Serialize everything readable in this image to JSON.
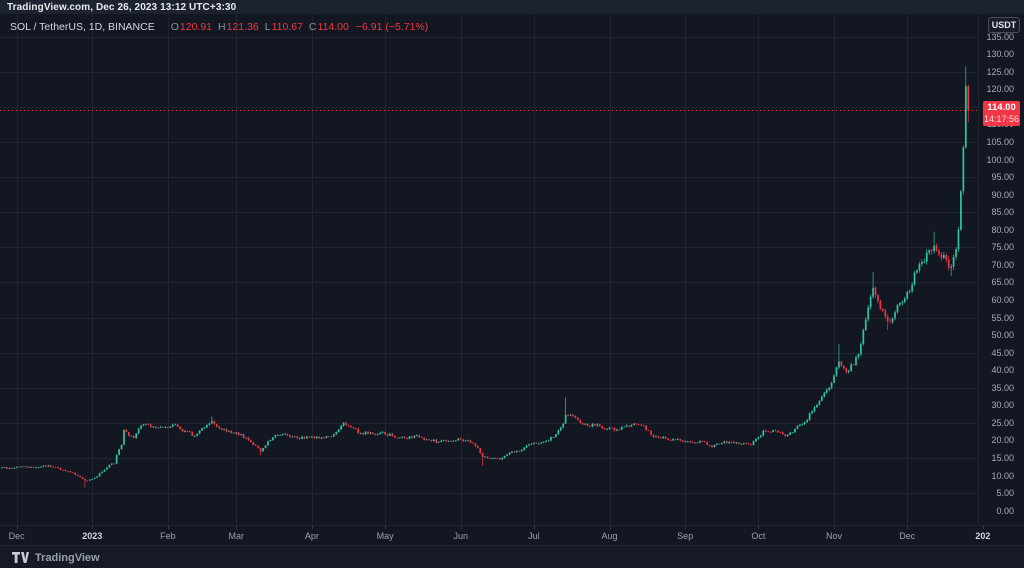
{
  "header": {
    "title": "TradingView.com, Dec 26, 2023 13:12 UTC+3:30"
  },
  "legend": {
    "symbol": "SOL / TetherUS, 1D, BINANCE",
    "o_label": "O",
    "o": "120.91",
    "h_label": "H",
    "h": "121.36",
    "l_label": "L",
    "l": "110.67",
    "c_label": "C",
    "c": "114.00",
    "change": "−6.91 (−5.71%)"
  },
  "price_axis": {
    "currency_button": "USDT",
    "ticks": [
      "135.00",
      "130.00",
      "125.00",
      "120.00",
      "115.00",
      "110.00",
      "105.00",
      "100.00",
      "95.00",
      "90.00",
      "85.00",
      "80.00",
      "75.00",
      "70.00",
      "65.00",
      "60.00",
      "55.00",
      "50.00",
      "45.00",
      "40.00",
      "35.00",
      "30.00",
      "25.00",
      "20.00",
      "15.00",
      "10.00",
      "5.00",
      "0.00"
    ],
    "tick_max": 135,
    "tick_step": 5,
    "last_price": "114.00",
    "countdown": "14:17:56"
  },
  "time_axis": {
    "labels": [
      {
        "text": "Dec",
        "day": 6,
        "major": false
      },
      {
        "text": "2023",
        "day": 37,
        "major": true
      },
      {
        "text": "Feb",
        "day": 68,
        "major": false
      },
      {
        "text": "Mar",
        "day": 96,
        "major": false
      },
      {
        "text": "Apr",
        "day": 127,
        "major": false
      },
      {
        "text": "May",
        "day": 157,
        "major": false
      },
      {
        "text": "Jun",
        "day": 188,
        "major": false
      },
      {
        "text": "Jul",
        "day": 218,
        "major": false
      },
      {
        "text": "Aug",
        "day": 249,
        "major": false
      },
      {
        "text": "Sep",
        "day": 280,
        "major": false
      },
      {
        "text": "Oct",
        "day": 310,
        "major": false
      },
      {
        "text": "Nov",
        "day": 341,
        "major": false
      },
      {
        "text": "Dec",
        "day": 371,
        "major": false
      },
      {
        "text": "202",
        "day": 402,
        "major": true
      }
    ]
  },
  "footer": {
    "brand": "TradingView"
  },
  "colors": {
    "background": "#131722",
    "up": "#2fc6a7",
    "down": "#f23645",
    "grid": "rgba(54,58,69,0.38)",
    "last_price_line": "#f23645"
  },
  "chart_data": {
    "type": "candlestick",
    "symbol": "SOL/USDT",
    "exchange": "BINANCE",
    "interval": "1D",
    "current_price": 114.0,
    "last_open": 120.91,
    "last_high": 121.36,
    "last_low": 110.67,
    "change": -6.91,
    "change_pct": -5.71,
    "ylim": [
      0,
      141.5
    ],
    "days_total": 396,
    "anchors_format": "[day_index_from_2022-11-25, close, high_or_null, low_or_null]",
    "anchors": [
      [
        0,
        12.3
      ],
      [
        4,
        12.0
      ],
      [
        8,
        12.6
      ],
      [
        13,
        12.2
      ],
      [
        19,
        12.9
      ],
      [
        21,
        12.4
      ],
      [
        25,
        11.6
      ],
      [
        29,
        10.8
      ],
      [
        32,
        9.6
      ],
      [
        34,
        8.6,
        null,
        6.6
      ],
      [
        36,
        8.9
      ],
      [
        38,
        9.4
      ],
      [
        41,
        11.1
      ],
      [
        44,
        13.1
      ],
      [
        46,
        13.4
      ],
      [
        47,
        15.9
      ],
      [
        49,
        18.8
      ],
      [
        50,
        23.0
      ],
      [
        52,
        21.3
      ],
      [
        54,
        20.7
      ],
      [
        57,
        24.2
      ],
      [
        60,
        24.5
      ],
      [
        63,
        23.6
      ],
      [
        67,
        23.8
      ],
      [
        70,
        24.5
      ],
      [
        75,
        22.7
      ],
      [
        79,
        21.3
      ],
      [
        82,
        23.5
      ],
      [
        86,
        25.5,
        26.8
      ],
      [
        89,
        23.5
      ],
      [
        92,
        22.5
      ],
      [
        96,
        22.3
      ],
      [
        100,
        20.8
      ],
      [
        104,
        18.5
      ],
      [
        106,
        16.9,
        null,
        15.8
      ],
      [
        109,
        19.8
      ],
      [
        112,
        21.5
      ],
      [
        116,
        21.9
      ],
      [
        121,
        20.7
      ],
      [
        126,
        20.9
      ],
      [
        130,
        20.6
      ],
      [
        135,
        21.1
      ],
      [
        139,
        24.2
      ],
      [
        140,
        25.1
      ],
      [
        143,
        23.8
      ],
      [
        147,
        22.1
      ],
      [
        152,
        21.9
      ],
      [
        156,
        22.4
      ],
      [
        160,
        21.3
      ],
      [
        165,
        20.7
      ],
      [
        169,
        21.3
      ],
      [
        174,
        20.3
      ],
      [
        179,
        19.6
      ],
      [
        183,
        19.9
      ],
      [
        187,
        20.6
      ],
      [
        192,
        19.4
      ],
      [
        195,
        17.8
      ],
      [
        197,
        15.3,
        null,
        12.8
      ],
      [
        201,
        15.0
      ],
      [
        204,
        14.6
      ],
      [
        208,
        16.5
      ],
      [
        212,
        16.9
      ],
      [
        216,
        18.9
      ],
      [
        219,
        19.1
      ],
      [
        223,
        19.9
      ],
      [
        227,
        21.8
      ],
      [
        230,
        24.8
      ],
      [
        231,
        27.3,
        32.3
      ],
      [
        234,
        26.9
      ],
      [
        237,
        25.0
      ],
      [
        240,
        24.2
      ],
      [
        244,
        24.6
      ],
      [
        248,
        23.3
      ],
      [
        252,
        23.1
      ],
      [
        256,
        24.3
      ],
      [
        260,
        24.6
      ],
      [
        263,
        24.2
      ],
      [
        266,
        21.6
      ],
      [
        270,
        20.7
      ],
      [
        275,
        20.4
      ],
      [
        279,
        19.7
      ],
      [
        283,
        19.4
      ],
      [
        287,
        19.8
      ],
      [
        291,
        18.1
      ],
      [
        295,
        19.3
      ],
      [
        299,
        19.6
      ],
      [
        303,
        19.0
      ],
      [
        307,
        18.7
      ],
      [
        310,
        20.9
      ],
      [
        312,
        22.8
      ],
      [
        316,
        22.9
      ],
      [
        321,
        21.2
      ],
      [
        325,
        23.3
      ],
      [
        329,
        25.3
      ],
      [
        333,
        29.5
      ],
      [
        336,
        32.5
      ],
      [
        339,
        35.0
      ],
      [
        341,
        38.5
      ],
      [
        343,
        42.5,
        47.5
      ],
      [
        346,
        39.5
      ],
      [
        349,
        41.5
      ],
      [
        352,
        47.5
      ],
      [
        354,
        54.5
      ],
      [
        357,
        63.5,
        68.0
      ],
      [
        360,
        57.5
      ],
      [
        363,
        54.0,
        null,
        51.5
      ],
      [
        366,
        56.5
      ],
      [
        369,
        59.5
      ],
      [
        372,
        62.5
      ],
      [
        375,
        68.5
      ],
      [
        379,
        73.5
      ],
      [
        382,
        75.5,
        79.5
      ],
      [
        384,
        73.0
      ],
      [
        387,
        71.5
      ],
      [
        389,
        69.5,
        null,
        66.9
      ],
      [
        391,
        74.5
      ],
      [
        392,
        80.0
      ],
      [
        393,
        91.0
      ],
      [
        394,
        103.5
      ],
      [
        395,
        120.9,
        126.5
      ],
      [
        396,
        114.0,
        121.36,
        110.67
      ]
    ]
  }
}
